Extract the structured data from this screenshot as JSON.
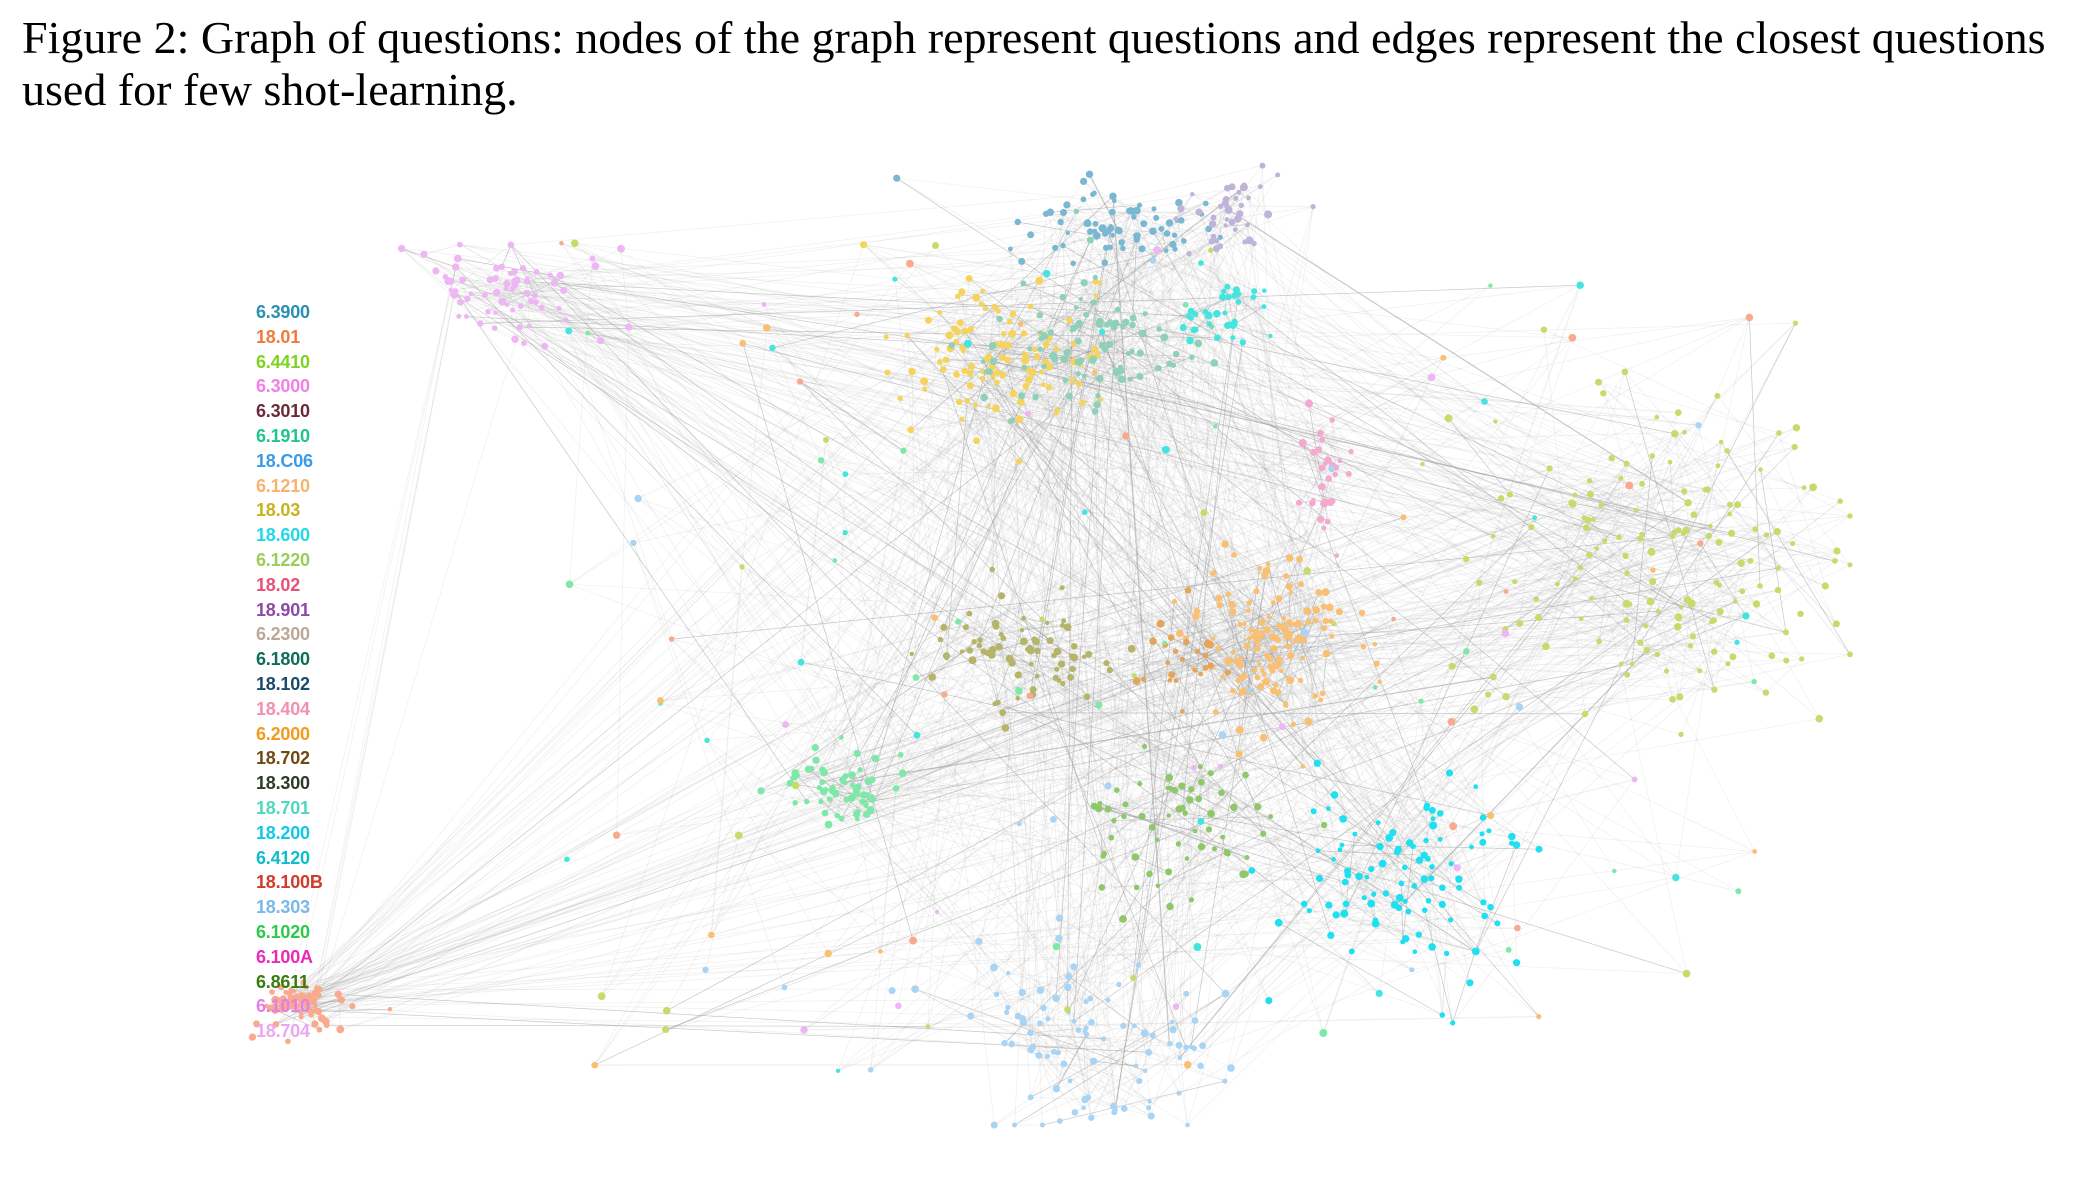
{
  "caption": {
    "label": "Figure 2:",
    "text": "Graph of questions: nodes of the graph represent questions and edges represent the closest questions used for few shot-learning."
  },
  "legend": [
    {
      "label": "6.3900",
      "color": "#2a8fb0"
    },
    {
      "label": "18.01",
      "color": "#f07a3c"
    },
    {
      "label": "6.4410",
      "color": "#7ed321"
    },
    {
      "label": "6.3000",
      "color": "#f27ee8"
    },
    {
      "label": "6.3010",
      "color": "#6b2a3a"
    },
    {
      "label": "6.1910",
      "color": "#1fc48e"
    },
    {
      "label": "18.C06",
      "color": "#3a9be8"
    },
    {
      "label": "6.1210",
      "color": "#f5b36e"
    },
    {
      "label": "18.03",
      "color": "#c9b21a"
    },
    {
      "label": "18.600",
      "color": "#22d8e8"
    },
    {
      "label": "6.1220",
      "color": "#9ccc5a"
    },
    {
      "label": "18.02",
      "color": "#e8507a"
    },
    {
      "label": "18.901",
      "color": "#8e4aa8"
    },
    {
      "label": "6.2300",
      "color": "#bba898"
    },
    {
      "label": "6.1800",
      "color": "#0f6e5a"
    },
    {
      "label": "18.102",
      "color": "#1a4a6e"
    },
    {
      "label": "18.404",
      "color": "#f58fb0"
    },
    {
      "label": "6.2000",
      "color": "#f59a1a"
    },
    {
      "label": "18.702",
      "color": "#6e4a10"
    },
    {
      "label": "18.300",
      "color": "#2e3a2a"
    },
    {
      "label": "18.701",
      "color": "#4ed8c0"
    },
    {
      "label": "18.200",
      "color": "#12c8e8"
    },
    {
      "label": "6.4120",
      "color": "#10bcc8"
    },
    {
      "label": "18.100B",
      "color": "#d23a2a"
    },
    {
      "label": "18.303",
      "color": "#7ab8e8"
    },
    {
      "label": "6.1020",
      "color": "#2ec84a"
    },
    {
      "label": "6.100A",
      "color": "#ea2ab8"
    },
    {
      "label": "6.8611",
      "color": "#3a7a10"
    },
    {
      "label": "6.1010",
      "color": "#e27ee8"
    },
    {
      "label": "18.704",
      "color": "#eaa8f2"
    }
  ],
  "graph": {
    "edge_color": "#9a9a9a",
    "clusters": [
      {
        "course": "18.01",
        "color": "#f9a98e"
      },
      {
        "course": "6.1010",
        "color": "#eeb6f4"
      },
      {
        "course": "18.03",
        "color": "#f6d35a"
      },
      {
        "course": "6.3900",
        "color": "#7ab8d2"
      },
      {
        "course": "18.901",
        "color": "#bfb4d8"
      },
      {
        "course": "6.1220",
        "color": "#8fd0b8"
      },
      {
        "course": "18.600",
        "color": "#43e6df"
      },
      {
        "course": "6.1910",
        "color": "#7ee8a8"
      },
      {
        "course": "6.2000",
        "color": "#f9c073"
      },
      {
        "course": "6.1220",
        "color": "#c6dc6a"
      },
      {
        "course": "18.404",
        "color": "#f4a9cf"
      },
      {
        "course": "6.4120",
        "color": "#1fe0f0"
      },
      {
        "course": "18.303",
        "color": "#a9d4f4"
      },
      {
        "course": "6.1220",
        "color": "#8ec86a"
      },
      {
        "course": "18.03",
        "color": "#b5b46a"
      },
      {
        "course": "6.2300",
        "color": "#e4a45a"
      }
    ]
  }
}
